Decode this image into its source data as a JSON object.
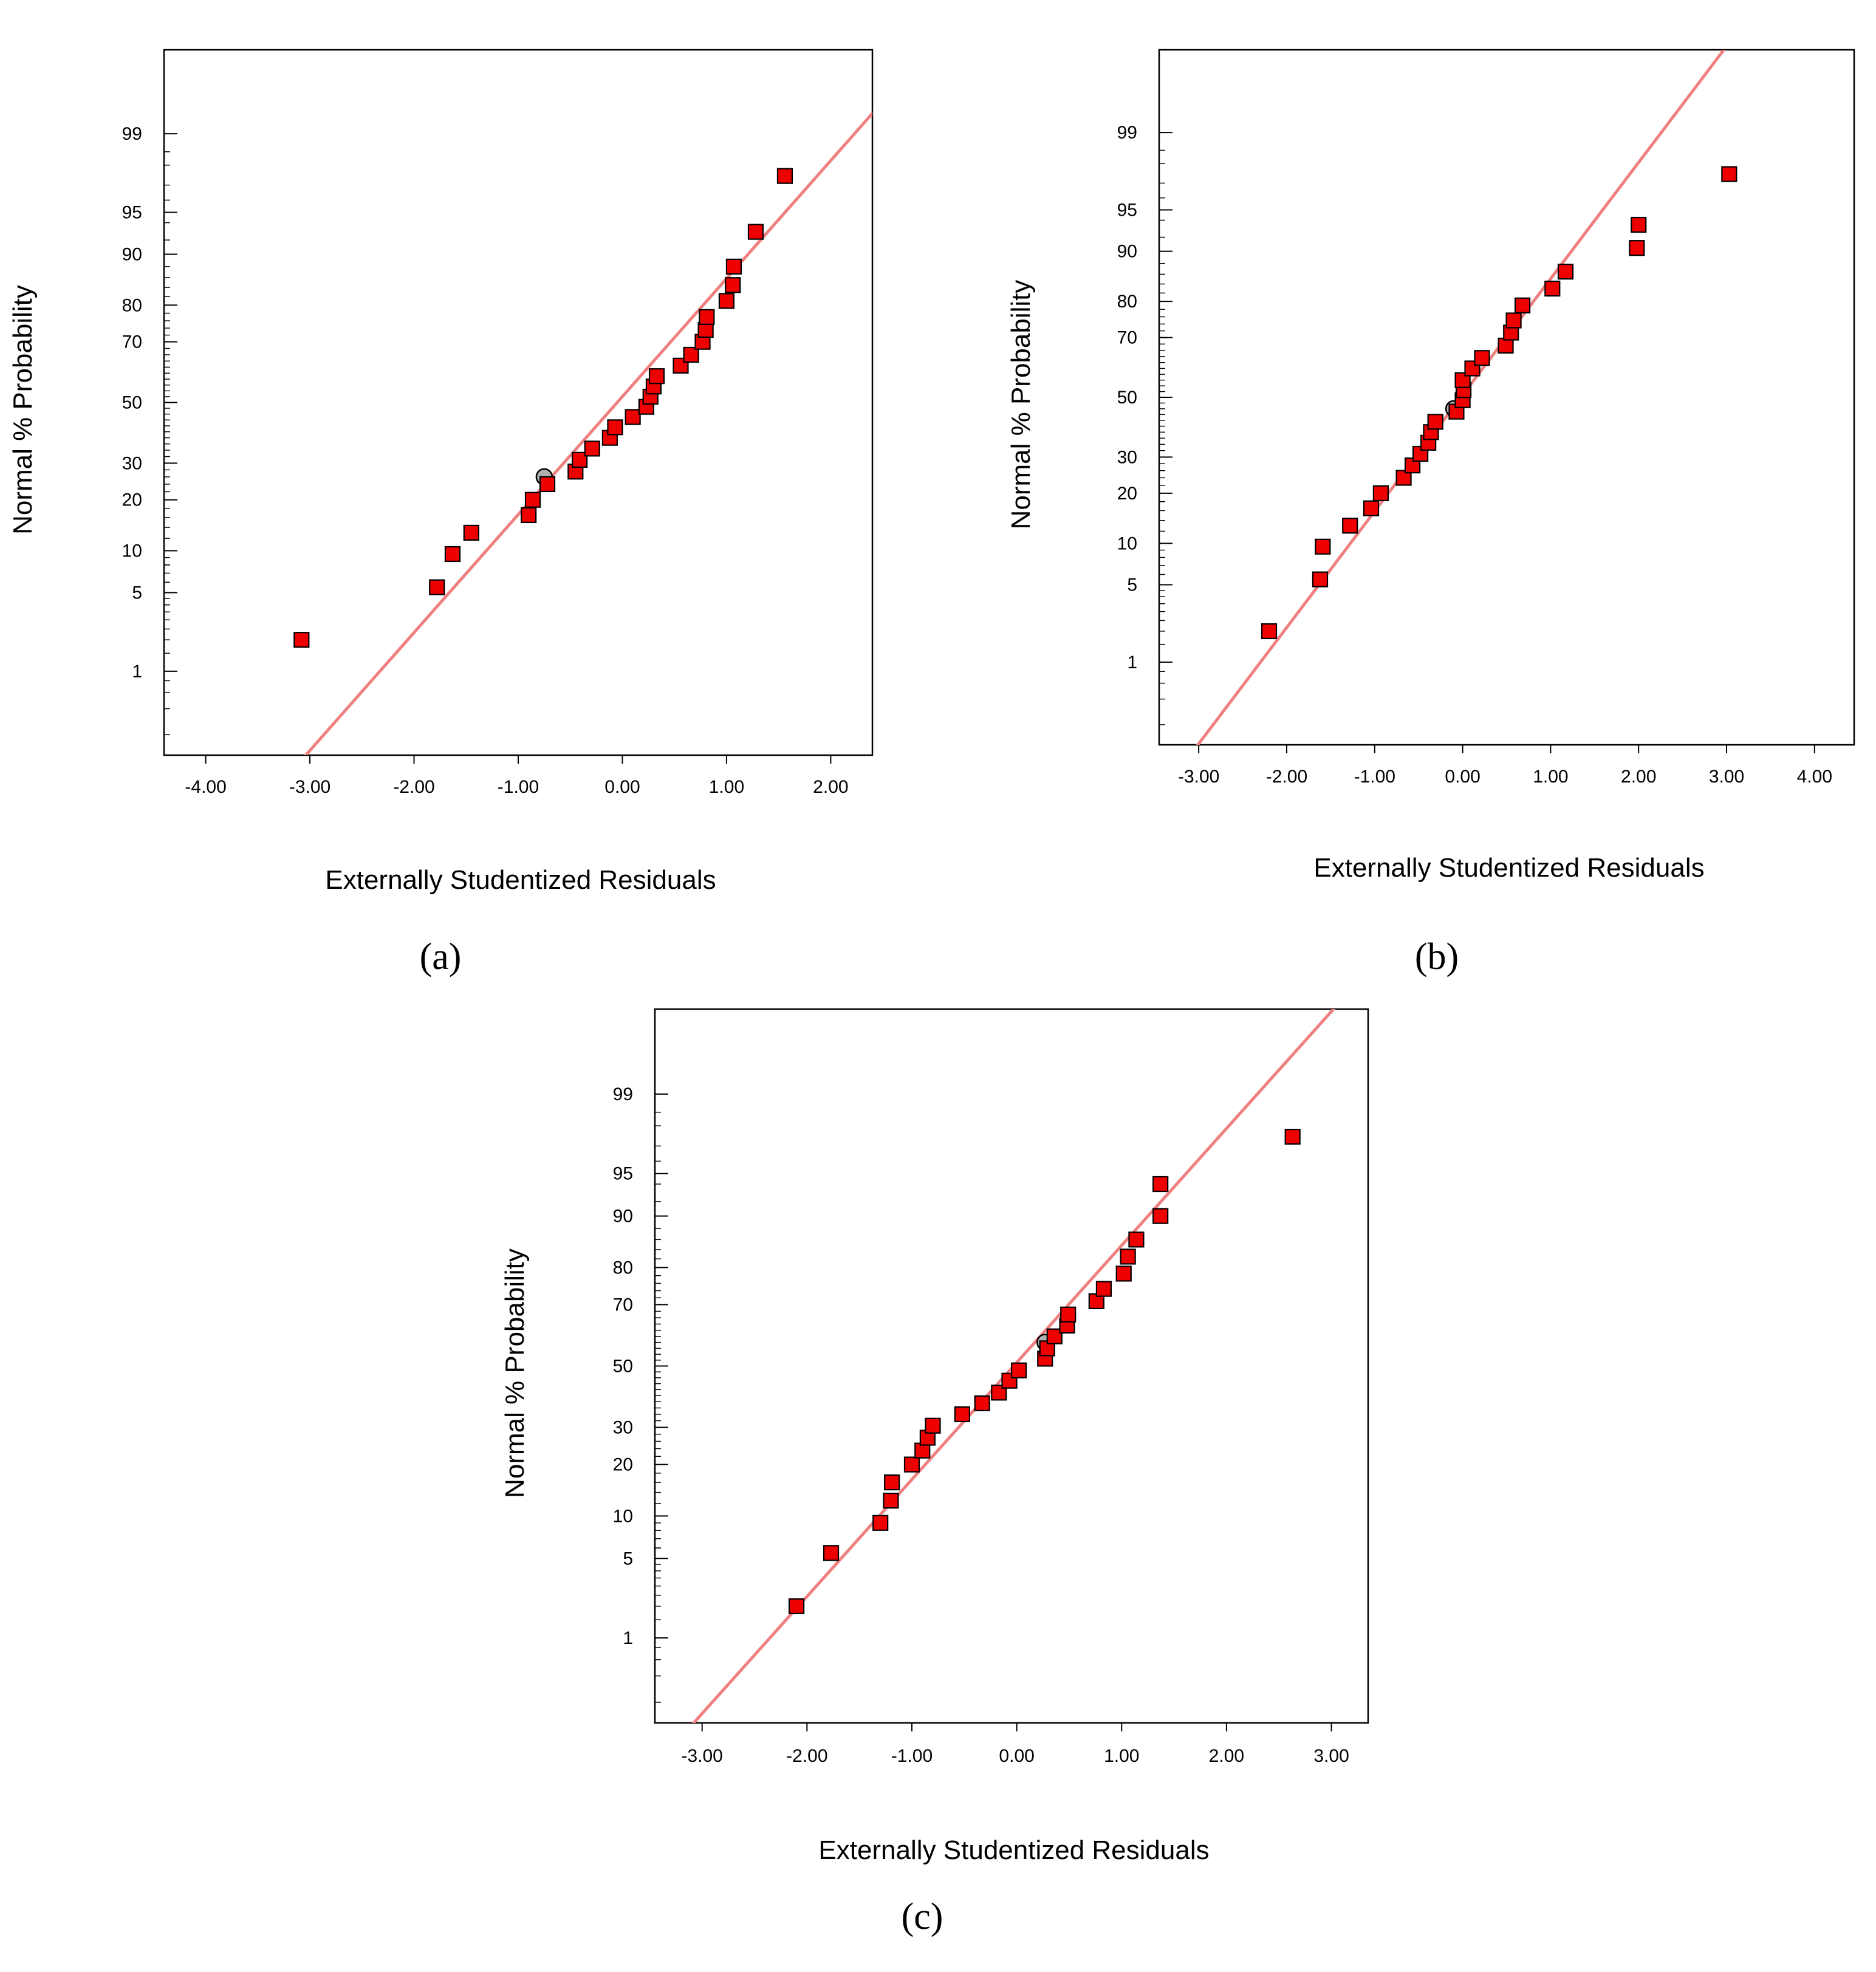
{
  "figure": {
    "colors": {
      "point_fill": "#ee0000",
      "point_stroke": "#000000",
      "fit_line": "#f08080",
      "highlight_fill": "#b0b0b0"
    }
  },
  "chart_data": [
    {
      "type": "scatter",
      "panel_label": "(a)",
      "xlabel": "Externally Studentized Residuals",
      "ylabel": "Normal % Probability",
      "xlim": [
        -4.4,
        2.4
      ],
      "x_ticks": [
        "-4.00",
        "-3.00",
        "-2.00",
        "-1.00",
        "0.00",
        "1.00",
        "2.00"
      ],
      "y_ticks": [
        "1",
        "5",
        "10",
        "20",
        "30",
        "50",
        "70",
        "80",
        "90",
        "95",
        "99"
      ],
      "fit_line": {
        "x_at_p50": -0.05,
        "slope_per_z": 0.98
      },
      "highlight_point": {
        "x": -0.75,
        "p": 26
      },
      "points": [
        {
          "x": -3.08,
          "p": 2.0
        },
        {
          "x": -1.78,
          "p": 5.5
        },
        {
          "x": -1.63,
          "p": 9.5
        },
        {
          "x": -1.45,
          "p": 13.0
        },
        {
          "x": -0.9,
          "p": 16.5
        },
        {
          "x": -0.86,
          "p": 20.0
        },
        {
          "x": -0.72,
          "p": 24.0
        },
        {
          "x": -0.45,
          "p": 27.5
        },
        {
          "x": -0.41,
          "p": 31.0
        },
        {
          "x": -0.29,
          "p": 34.5
        },
        {
          "x": -0.12,
          "p": 38.0
        },
        {
          "x": -0.07,
          "p": 41.5
        },
        {
          "x": 0.1,
          "p": 45.0
        },
        {
          "x": 0.23,
          "p": 48.5
        },
        {
          "x": 0.27,
          "p": 52.0
        },
        {
          "x": 0.3,
          "p": 55.5
        },
        {
          "x": 0.33,
          "p": 59.0
        },
        {
          "x": 0.56,
          "p": 62.5
        },
        {
          "x": 0.66,
          "p": 66.0
        },
        {
          "x": 0.77,
          "p": 70.0
        },
        {
          "x": 0.8,
          "p": 73.5
        },
        {
          "x": 0.81,
          "p": 77.0
        },
        {
          "x": 1.0,
          "p": 81.0
        },
        {
          "x": 1.06,
          "p": 84.5
        },
        {
          "x": 1.07,
          "p": 88.0
        },
        {
          "x": 1.28,
          "p": 93.0
        },
        {
          "x": 1.56,
          "p": 97.5
        }
      ]
    },
    {
      "type": "scatter",
      "panel_label": "(b)",
      "xlabel": "Externally Studentized Residuals",
      "ylabel": "Normal % Probability",
      "xlim": [
        -3.45,
        4.45
      ],
      "x_ticks": [
        "-3.00",
        "-2.00",
        "-1.00",
        "0.00",
        "1.00",
        "2.00",
        "3.00",
        "4.00"
      ],
      "y_ticks": [
        "1",
        "5",
        "10",
        "20",
        "30",
        "50",
        "70",
        "80",
        "90",
        "95",
        "99"
      ],
      "fit_line": {
        "x_at_p50": -0.02,
        "slope_per_z": 0.98
      },
      "highlight_point": {
        "x": -0.1,
        "p": 46
      },
      "points": [
        {
          "x": -2.2,
          "p": 2.0
        },
        {
          "x": -1.62,
          "p": 5.5
        },
        {
          "x": -1.59,
          "p": 9.5
        },
        {
          "x": -1.28,
          "p": 13.0
        },
        {
          "x": -1.04,
          "p": 16.5
        },
        {
          "x": -0.93,
          "p": 20.0
        },
        {
          "x": -0.67,
          "p": 24.0
        },
        {
          "x": -0.57,
          "p": 27.5
        },
        {
          "x": -0.48,
          "p": 31.0
        },
        {
          "x": -0.39,
          "p": 34.5
        },
        {
          "x": -0.36,
          "p": 38.0
        },
        {
          "x": -0.31,
          "p": 41.5
        },
        {
          "x": -0.07,
          "p": 45.0
        },
        {
          "x": 0.0,
          "p": 49.0
        },
        {
          "x": 0.01,
          "p": 52.5
        },
        {
          "x": 0.0,
          "p": 56.0
        },
        {
          "x": 0.11,
          "p": 60.0
        },
        {
          "x": 0.22,
          "p": 63.5
        },
        {
          "x": 0.49,
          "p": 67.5
        },
        {
          "x": 0.55,
          "p": 71.5
        },
        {
          "x": 0.58,
          "p": 75.0
        },
        {
          "x": 0.68,
          "p": 79.0
        },
        {
          "x": 1.02,
          "p": 83.0
        },
        {
          "x": 1.17,
          "p": 86.5
        },
        {
          "x": 1.98,
          "p": 90.5
        },
        {
          "x": 2.0,
          "p": 93.5
        },
        {
          "x": 3.03,
          "p": 97.5
        }
      ]
    },
    {
      "type": "scatter",
      "panel_label": "(c)",
      "xlabel": "Externally Studentized Residuals",
      "ylabel": "Normal % Probability",
      "xlim": [
        -3.45,
        3.35
      ],
      "x_ticks": [
        "-3.00",
        "-2.00",
        "-1.00",
        "0.00",
        "1.00",
        "2.00",
        "3.00"
      ],
      "y_ticks": [
        "1",
        "5",
        "10",
        "20",
        "30",
        "50",
        "70",
        "80",
        "90",
        "95",
        "99"
      ],
      "fit_line": {
        "x_at_p50": -0.03,
        "slope_per_z": 1.0
      },
      "highlight_point": {
        "x": 0.27,
        "p": 58
      },
      "points": [
        {
          "x": -2.1,
          "p": 2.0
        },
        {
          "x": -1.77,
          "p": 5.5
        },
        {
          "x": -1.3,
          "p": 9.0
        },
        {
          "x": -1.2,
          "p": 12.5
        },
        {
          "x": -1.19,
          "p": 16.0
        },
        {
          "x": -1.0,
          "p": 20.0
        },
        {
          "x": -0.9,
          "p": 23.5
        },
        {
          "x": -0.85,
          "p": 27.0
        },
        {
          "x": -0.8,
          "p": 30.5
        },
        {
          "x": -0.52,
          "p": 34.0
        },
        {
          "x": -0.33,
          "p": 37.5
        },
        {
          "x": -0.17,
          "p": 41.0
        },
        {
          "x": -0.07,
          "p": 45.0
        },
        {
          "x": 0.02,
          "p": 48.5
        },
        {
          "x": 0.27,
          "p": 52.5
        },
        {
          "x": 0.29,
          "p": 56.0
        },
        {
          "x": 0.36,
          "p": 60.0
        },
        {
          "x": 0.48,
          "p": 63.5
        },
        {
          "x": 0.49,
          "p": 67.0
        },
        {
          "x": 0.76,
          "p": 71.0
        },
        {
          "x": 0.83,
          "p": 74.5
        },
        {
          "x": 1.02,
          "p": 78.5
        },
        {
          "x": 1.06,
          "p": 82.5
        },
        {
          "x": 1.14,
          "p": 86.0
        },
        {
          "x": 1.37,
          "p": 90.0
        },
        {
          "x": 1.37,
          "p": 94.0
        },
        {
          "x": 2.63,
          "p": 97.5
        }
      ]
    }
  ]
}
